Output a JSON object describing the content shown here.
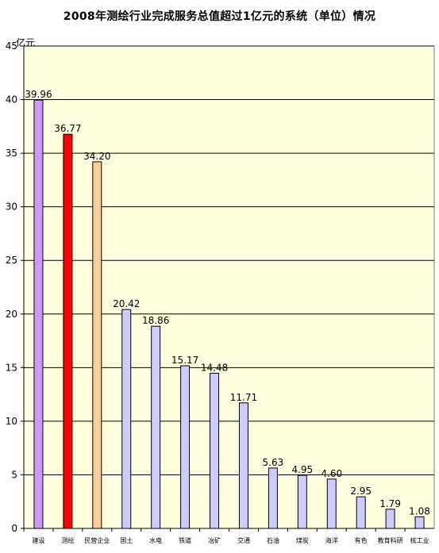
{
  "chart_data": {
    "type": "bar",
    "title": "2008年测绘行业完成服务总值超过1亿元的系统（单位）情况",
    "unit": "亿元",
    "ylim": [
      0,
      45
    ],
    "yticks": [
      0,
      5,
      10,
      15,
      20,
      25,
      30,
      35,
      40,
      45
    ],
    "grid": true,
    "categories": [
      "建设",
      "测绘",
      "民营企业",
      "国土",
      "水电",
      "铁道",
      "冶矿",
      "交通",
      "石油",
      "煤炭",
      "海洋",
      "有色",
      "教育科研",
      "核工业"
    ],
    "values": [
      39.96,
      36.77,
      34.2,
      20.42,
      18.86,
      15.17,
      14.48,
      11.71,
      5.63,
      4.95,
      4.6,
      2.95,
      1.79,
      1.08
    ],
    "value_labels": [
      "39.96",
      "36.77",
      "34.20",
      "20.42",
      "18.86",
      "15.17",
      "14.48",
      "11.71",
      "5.63",
      "4.95",
      "4.60",
      "2.95",
      "1.79",
      "1.08"
    ],
    "colors": {
      "plot_background": "#FFFFE0",
      "bar_default": "#CCCCFF",
      "bar_first": "#CC99FF",
      "bar_highlight": "#FF0000",
      "bar_private": "#FFCC99",
      "bar_outline": "#000000"
    },
    "bar_colors": [
      "#CC99FF",
      "#FF0000",
      "#FFCC99",
      "#CCCCFF",
      "#CCCCFF",
      "#CCCCFF",
      "#CCCCFF",
      "#CCCCFF",
      "#CCCCFF",
      "#CCCCFF",
      "#CCCCFF",
      "#CCCCFF",
      "#CCCCFF",
      "#CCCCFF"
    ]
  }
}
